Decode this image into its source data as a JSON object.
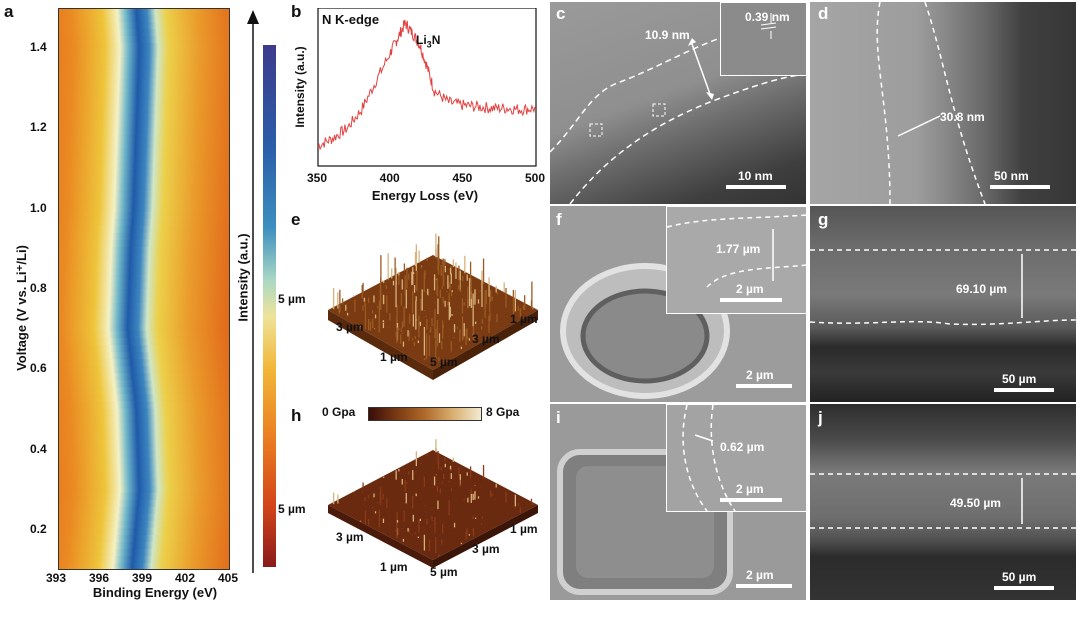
{
  "panels": {
    "a": {
      "label": "a"
    },
    "b": {
      "label": "b"
    },
    "c": {
      "label": "c"
    },
    "d": {
      "label": "d"
    },
    "e": {
      "label": "e"
    },
    "f": {
      "label": "f"
    },
    "g": {
      "label": "g"
    },
    "h": {
      "label": "h"
    },
    "i": {
      "label": "i"
    },
    "j": {
      "label": "j"
    }
  },
  "panel_a": {
    "x_ticks": [
      "393",
      "396",
      "399",
      "402",
      "405"
    ],
    "y_ticks": [
      "0.2",
      "0.4",
      "0.6",
      "0.8",
      "1.0",
      "1.2",
      "1.4"
    ],
    "xlabel": "Binding Energy (eV)",
    "ylabel": "Voltage  (V vs. Li⁺/Li)",
    "colorbar_label": "Intensity (a.u.)"
  },
  "panel_b": {
    "annotation": "N K-edge",
    "peak_label": "Li",
    "peak_label_sub": "3",
    "peak_label_tail": "N",
    "xlabel": "Energy Loss (eV)",
    "ylabel": "Intensity (a.u.)",
    "x_ticks": [
      "350",
      "400",
      "450",
      "500"
    ]
  },
  "panel_c": {
    "thickness": "10.9 nm",
    "lattice": "0.39 nm",
    "scale": "10 nm"
  },
  "panel_d": {
    "thickness": "30.8 nm",
    "scale": "50 nm"
  },
  "panel_e": {
    "ticks_left": [
      "5 µm",
      "3 µm",
      "1 µm"
    ],
    "ticks_right": [
      "1 µm",
      "3 µm",
      "5 µm"
    ]
  },
  "panel_h": {
    "ticks_left": [
      "5 µm",
      "3 µm",
      "1 µm"
    ],
    "ticks_right": [
      "1 µm",
      "3 µm",
      "5 µm"
    ],
    "cbar_min": "0 Gpa",
    "cbar_max": "8 Gpa"
  },
  "panel_f": {
    "thickness": "1.77 µm",
    "inset_scale": "2 µm",
    "scale": "2 µm"
  },
  "panel_g": {
    "thickness": "69.10 µm",
    "scale": "50 µm"
  },
  "panel_i": {
    "thickness": "0.62 µm",
    "inset_scale": "2 µm",
    "scale": "2 µm"
  },
  "panel_j": {
    "thickness": "49.50 µm",
    "scale": "50 µm"
  },
  "colors": {
    "heatmap_orange": "#e8751f",
    "heatmap_blue": "#1e5aa8",
    "spectrum_red": "#e34040",
    "afm_brown": "#7a3a12"
  },
  "chart_data": [
    {
      "type": "heatmap",
      "panel": "a",
      "xlabel": "Binding Energy (eV)",
      "ylabel": "Voltage  (V vs. Li⁺/Li)",
      "xlim": [
        393,
        405
      ],
      "ylim": [
        0.1,
        1.5
      ],
      "ridge_center_eV": [
        [
          0.1,
          398.3
        ],
        [
          0.3,
          398.8
        ],
        [
          0.5,
          398.6
        ],
        [
          0.7,
          398.0
        ],
        [
          0.9,
          398.2
        ],
        [
          1.0,
          398.4
        ],
        [
          1.2,
          398.6
        ],
        [
          1.4,
          398.8
        ],
        [
          1.5,
          398.6
        ]
      ]
    },
    {
      "type": "line",
      "panel": "b",
      "xlabel": "Energy Loss (eV)",
      "ylabel": "Intensity (a.u.)",
      "xlim": [
        350,
        500
      ],
      "x": [
        350,
        360,
        370,
        380,
        390,
        400,
        405,
        410,
        415,
        420,
        425,
        430,
        440,
        450,
        460,
        470,
        480,
        490,
        500
      ],
      "y": [
        0.1,
        0.15,
        0.22,
        0.35,
        0.55,
        0.75,
        0.85,
        0.95,
        0.88,
        0.8,
        0.65,
        0.48,
        0.4,
        0.38,
        0.37,
        0.36,
        0.36,
        0.35,
        0.36
      ]
    }
  ]
}
